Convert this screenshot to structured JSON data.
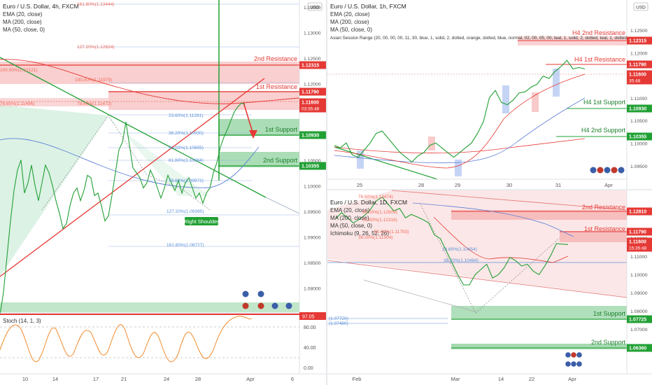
{
  "colors": {
    "green": "#21a034",
    "red": "#e53935",
    "blue": "#5b7fd6",
    "orange": "#f28b2c",
    "resist_fill": "#f4a7a7",
    "support_fill": "#8fd19e",
    "axis_text": "#555555",
    "fib": "#5b8fd8",
    "fib_red": "#f26a5a",
    "grid": "#f0f3fa"
  },
  "chart_data": [
    {
      "id": "left",
      "type": "line",
      "title": "Euro / U.S. Dollar, 4h, FXCM",
      "indicators": [
        "EMA (20, close)",
        "MA (200, close)",
        "MA (50, close, 0)"
      ],
      "currency": "USD",
      "price_ticks": [
        "1.13500",
        "1.13000",
        "1.12500",
        "1.12000",
        "1.11500",
        "1.11000",
        "1.10500",
        "1.10000",
        "1.09500",
        "1.09000",
        "1.08500",
        "1.08000"
      ],
      "x_ticks": [
        "10",
        "14",
        "17",
        "21",
        "24",
        "28",
        "Apr",
        "6"
      ],
      "price_tags": [
        {
          "label": "1.12315",
          "kind": "red"
        },
        {
          "label": "1.11790",
          "kind": "red"
        },
        {
          "label": "1.11600",
          "sub": "03:35:48",
          "kind": "red"
        },
        {
          "label": "1.10930",
          "kind": "green"
        },
        {
          "label": "1.10355",
          "kind": "green"
        }
      ],
      "levels": [
        {
          "label": "2nd Resistance",
          "kind": "red"
        },
        {
          "label": "1st Resistance",
          "kind": "red"
        },
        {
          "label": "1st Support",
          "kind": "green"
        },
        {
          "label": "2nd Support",
          "kind": "green"
        }
      ],
      "fib_labels": [
        "161.80%(1.13444)",
        "127.20%(1.12624)",
        "100.00%(1.12121)",
        "100.00%(1.11979)",
        "78.60%(1.11496)",
        "78.60%(1.11472)",
        "23.60%(1.11281)",
        "38.20%(1.10930)",
        "50.00%(1.10655)",
        "61.80%(1.10364)",
        "78.60%(1.09972)",
        "127.20%(1.09395)",
        "161.80%(1.08727)"
      ],
      "pattern_label": "Right Shoulder",
      "stoch": {
        "title": "Stoch (14, 1, 3)",
        "ticks": [
          "80.00",
          "40.00",
          "0.00"
        ],
        "last": "97.05"
      },
      "close": [
        1.0745,
        1.079,
        1.086,
        1.093,
        1.099,
        1.103,
        1.105,
        1.0985,
        1.1005,
        1.104,
        1.1,
        1.097,
        1.1005,
        1.104,
        1.1025,
        1.1,
        1.097,
        1.0945,
        1.0915,
        1.0925,
        1.096,
        1.0985,
        1.0995,
        1.097,
        1.099,
        1.102,
        1.1015,
        1.098,
        1.0985,
        1.096,
        1.093,
        1.094,
        1.098,
        1.1025,
        1.107,
        1.1085,
        1.1125,
        1.108,
        1.1035,
        1.1025,
        1.1015,
        1.0995,
        1.1005,
        1.103,
        1.1015,
        1.0995,
        1.0975,
        1.0995,
        1.102,
        1.1005,
        1.099,
        1.101,
        1.0985,
        1.1005,
        1.1015,
        1.0995,
        1.0975,
        1.0985,
        1.0965,
        1.0985,
        1.0995,
        1.1025,
        1.1045,
        1.1075,
        1.1095,
        1.111,
        1.1128,
        1.1145,
        1.1155,
        1.1162,
        1.116
      ]
    },
    {
      "id": "top_right",
      "type": "line",
      "title": "Euro / U.S. Dollar, 1h, FXCM",
      "indicators": [
        "EMA (20, close)",
        "MA (200, close)",
        "MA (50, close, 0)",
        "Asian Session Range (20, 00, 00, 00, 11, 30, blue, 1, solid, 2, dotted, orange, dotted, blue, normal, 02, 00, 05, 00, teal, 1, solid, 2, dotted, teal, 1, dotted"
      ],
      "currency": "USD",
      "price_ticks": [
        "1.12500",
        "1.12000",
        "1.11500",
        "1.11000",
        "1.10500",
        "1.10000",
        "1.09500"
      ],
      "x_ticks": [
        "25",
        "28",
        "29",
        "30",
        "31",
        "Apr"
      ],
      "price_tags": [
        {
          "label": "1.12315",
          "kind": "red"
        },
        {
          "label": "1.11790",
          "kind": "red"
        },
        {
          "label": "1.11600",
          "sub": "35:48",
          "kind": "red"
        },
        {
          "label": "1.10930",
          "kind": "green"
        },
        {
          "label": "1.10355",
          "kind": "green"
        }
      ],
      "levels": [
        {
          "label": "H4 2nd Resistance",
          "kind": "red"
        },
        {
          "label": "H4 1st Resistance",
          "kind": "red"
        },
        {
          "label": "H4 1st Support",
          "kind": "green"
        },
        {
          "label": "H4 2nd Support",
          "kind": "green"
        }
      ],
      "close": [
        1.1,
        1.0995,
        1.1005,
        1.098,
        1.0975,
        1.099,
        1.1005,
        1.1025,
        1.103,
        1.1015,
        1.1,
        1.0985,
        1.0975,
        1.0965,
        1.0978,
        1.0985,
        1.1,
        1.1005,
        1.0995,
        1.0985,
        1.0975,
        1.0985,
        1.0995,
        1.1005,
        1.1025,
        1.105,
        1.11,
        1.1115,
        1.109,
        1.1085,
        1.1095,
        1.111,
        1.1112,
        1.1122,
        1.1128,
        1.1145,
        1.114,
        1.1155,
        1.1165,
        1.1178,
        1.116,
        1.1163,
        1.116
      ]
    },
    {
      "id": "bottom_right",
      "type": "line",
      "title": "Euro / U.S. Dollar, 1D, FXCM",
      "indicators": [
        "EMA (20, close)",
        "MA (200, close)",
        "MA (50, close, 0)",
        "Ichimoku (9, 26, 52, 26)"
      ],
      "currency": "",
      "price_ticks": [
        "1.12000",
        "1.11000",
        "1.10000",
        "1.09000",
        "1.08000",
        "1.07000",
        "1.06000"
      ],
      "x_ticks": [
        "Feb",
        "Mar",
        "14",
        "22",
        "Apr"
      ],
      "price_tags": [
        {
          "label": "1.12810",
          "kind": "red"
        },
        {
          "label": "1.11790",
          "kind": "red"
        },
        {
          "label": "1.11600",
          "sub": "15:35:48",
          "kind": "red"
        },
        {
          "label": "1.07725",
          "kind": "green"
        },
        {
          "label": "1.06360",
          "kind": "green"
        }
      ],
      "levels": [
        {
          "label": "2nd Resistance",
          "kind": "red"
        },
        {
          "label": "1st Resistance",
          "kind": "red"
        },
        {
          "label": "1st Support",
          "kind": "green"
        },
        {
          "label": "2nd Support",
          "kind": "green"
        }
      ],
      "fib_labels": [
        "78.60%(1.13474)",
        "50.00%(1.12809)",
        "61.80%(1.12316)",
        "50.00%(1.11793)",
        "38.20%(1.11504)",
        "23.60%(1.10654)",
        "38.20%(1.10484)",
        "(1.07720)",
        "(1.07480)"
      ],
      "close": [
        1.131,
        1.1345,
        1.1315,
        1.1285,
        1.1305,
        1.133,
        1.1365,
        1.1415,
        1.1435,
        1.1395,
        1.1355,
        1.137,
        1.1315,
        1.1335,
        1.132,
        1.1305,
        1.1285,
        1.1215,
        1.1195,
        1.1125,
        1.1055,
        1.0985,
        1.0925,
        1.0925,
        1.0985,
        1.1015,
        1.1045,
        1.0965,
        1.0985,
        1.1025,
        1.1085,
        1.1065,
        1.1035,
        1.1045,
        1.1005,
        1.0985,
        1.1035,
        1.1095,
        1.1165,
        1.1162,
        1.116
      ]
    }
  ]
}
